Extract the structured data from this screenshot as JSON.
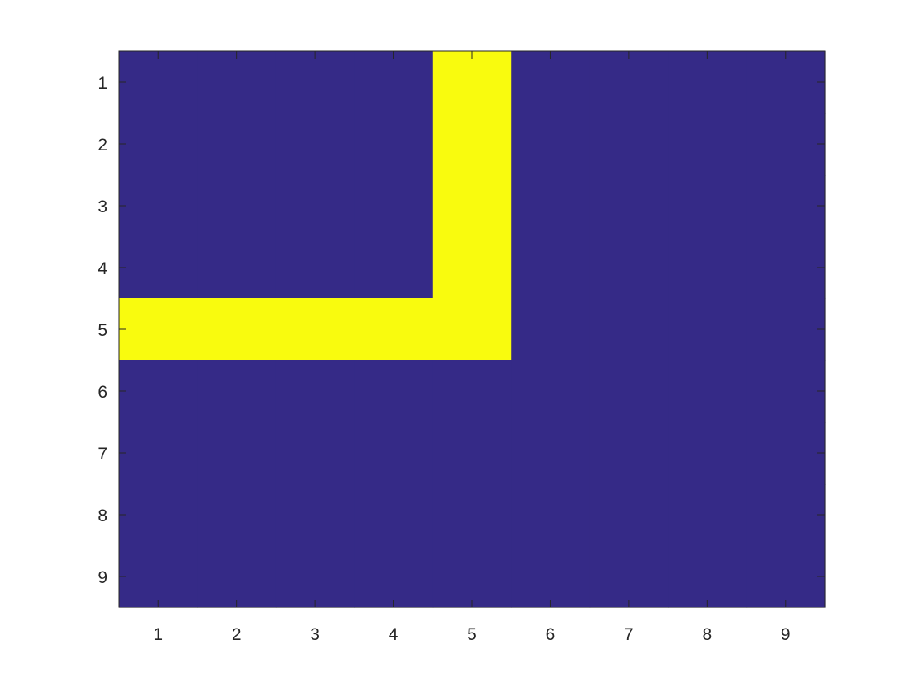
{
  "chart_data": {
    "type": "heatmap",
    "title": "",
    "xlabel": "",
    "ylabel": "",
    "x_ticks": [
      "1",
      "2",
      "3",
      "4",
      "5",
      "6",
      "7",
      "8",
      "9"
    ],
    "y_ticks": [
      "1",
      "2",
      "3",
      "4",
      "5",
      "6",
      "7",
      "8",
      "9"
    ],
    "xlim": [
      0.5,
      9.5
    ],
    "ylim": [
      0.5,
      9.5
    ],
    "y_direction": "reverse",
    "grid": false,
    "colormap": {
      "0": "#352a87",
      "1": "#f9fb0e"
    },
    "values": [
      [
        0,
        0,
        0,
        0,
        1,
        0,
        0,
        0,
        0
      ],
      [
        0,
        0,
        0,
        0,
        1,
        0,
        0,
        0,
        0
      ],
      [
        0,
        0,
        0,
        0,
        1,
        0,
        0,
        0,
        0
      ],
      [
        0,
        0,
        0,
        0,
        1,
        0,
        0,
        0,
        0
      ],
      [
        1,
        1,
        1,
        1,
        1,
        0,
        0,
        0,
        0
      ],
      [
        0,
        0,
        0,
        0,
        0,
        0,
        0,
        0,
        0
      ],
      [
        0,
        0,
        0,
        0,
        0,
        0,
        0,
        0,
        0
      ],
      [
        0,
        0,
        0,
        0,
        0,
        0,
        0,
        0,
        0
      ],
      [
        0,
        0,
        0,
        0,
        0,
        0,
        0,
        0,
        0
      ]
    ]
  }
}
